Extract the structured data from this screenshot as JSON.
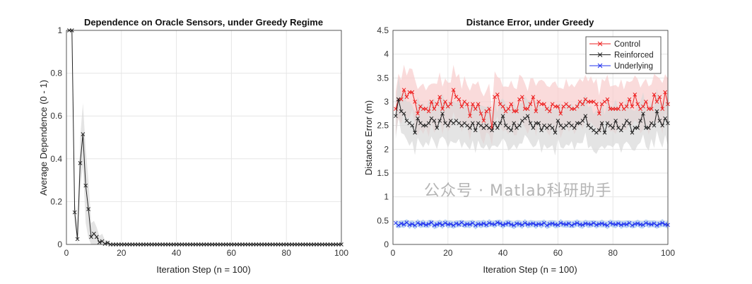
{
  "watermark": "公众号 · Matlab科研助手",
  "chart_data": [
    {
      "type": "line",
      "title": "Dependence on Oracle Sensors, under Greedy Regime",
      "xlabel": "Iteration Step (n = 100)",
      "ylabel": "Average Dependence (0 - 1)",
      "xlim": [
        0,
        100
      ],
      "ylim": [
        0,
        1
      ],
      "xticks": [
        0,
        20,
        40,
        60,
        80,
        100
      ],
      "yticks": [
        0,
        0.2,
        0.4,
        0.6,
        0.8,
        1
      ],
      "ytick_labels": [
        "0",
        "0.2",
        "0.4",
        "0.6",
        "0.8",
        "1"
      ],
      "grid": true,
      "series": [
        {
          "color": "#222222",
          "marker": "x",
          "band_color": "#d9d9d9",
          "values": [
            1,
            1,
            0.15,
            0.025,
            0.38,
            0.515,
            0.275,
            0.165,
            0.035,
            0.05,
            0.035,
            0.01,
            0.015,
            0.003,
            0.008,
            0,
            0,
            0,
            0,
            0,
            0,
            0,
            0,
            0,
            0,
            0,
            0,
            0,
            0,
            0,
            0,
            0,
            0,
            0,
            0,
            0,
            0,
            0,
            0,
            0,
            0,
            0,
            0,
            0,
            0,
            0,
            0,
            0,
            0,
            0,
            0,
            0,
            0,
            0,
            0,
            0,
            0,
            0,
            0,
            0,
            0,
            0,
            0,
            0,
            0,
            0,
            0,
            0,
            0,
            0,
            0,
            0,
            0,
            0,
            0,
            0,
            0,
            0,
            0,
            0,
            0,
            0,
            0,
            0,
            0,
            0,
            0,
            0,
            0,
            0,
            0,
            0,
            0,
            0,
            0,
            0,
            0,
            0,
            0,
            0
          ],
          "band_upper": [
            1,
            1,
            0.2,
            0.1,
            0.5,
            0.66,
            0.45,
            0.3,
            0.1,
            0.11,
            0.08,
            0.04,
            0.05,
            0.02,
            0.02,
            0,
            0,
            0,
            0,
            0,
            0,
            0,
            0,
            0,
            0,
            0,
            0,
            0,
            0,
            0,
            0,
            0,
            0,
            0,
            0,
            0,
            0,
            0,
            0,
            0,
            0,
            0,
            0,
            0,
            0,
            0,
            0,
            0,
            0,
            0,
            0,
            0,
            0,
            0,
            0,
            0,
            0,
            0,
            0,
            0,
            0,
            0,
            0,
            0,
            0,
            0,
            0,
            0,
            0,
            0,
            0,
            0,
            0,
            0,
            0,
            0,
            0,
            0,
            0,
            0,
            0,
            0,
            0,
            0,
            0,
            0,
            0,
            0,
            0,
            0,
            0,
            0,
            0,
            0,
            0,
            0,
            0,
            0,
            0,
            0
          ],
          "band_lower": [
            1,
            1,
            0.1,
            0,
            0.26,
            0.37,
            0.1,
            0.03,
            0,
            0,
            0,
            0,
            0,
            0,
            0,
            0,
            0,
            0,
            0,
            0,
            0,
            0,
            0,
            0,
            0,
            0,
            0,
            0,
            0,
            0,
            0,
            0,
            0,
            0,
            0,
            0,
            0,
            0,
            0,
            0,
            0,
            0,
            0,
            0,
            0,
            0,
            0,
            0,
            0,
            0,
            0,
            0,
            0,
            0,
            0,
            0,
            0,
            0,
            0,
            0,
            0,
            0,
            0,
            0,
            0,
            0,
            0,
            0,
            0,
            0,
            0,
            0,
            0,
            0,
            0,
            0,
            0,
            0,
            0,
            0,
            0,
            0,
            0,
            0,
            0,
            0,
            0,
            0,
            0,
            0,
            0,
            0,
            0,
            0,
            0,
            0,
            0,
            0,
            0,
            0
          ]
        }
      ]
    },
    {
      "type": "line",
      "title": "Distance Error, under Greedy",
      "xlabel": "Iteration Step (n = 100)",
      "ylabel": "Distance Error (m)",
      "xlim": [
        0,
        100
      ],
      "ylim": [
        0,
        4.5
      ],
      "xticks": [
        0,
        20,
        40,
        60,
        80,
        100
      ],
      "yticks": [
        0,
        0.5,
        1,
        1.5,
        2,
        2.5,
        3,
        3.5,
        4,
        4.5
      ],
      "ytick_labels": [
        "0",
        "0.5",
        "1",
        "1.5",
        "2",
        "2.5",
        "3",
        "3.5",
        "4",
        "4.5"
      ],
      "grid": true,
      "legend": "top-right",
      "series": [
        {
          "name": "Control",
          "color": "#ee2222",
          "band_color": "#f8cccc",
          "band_halfwidth": 0.45,
          "values": [
            2.85,
            3.05,
            3.05,
            3.25,
            3.1,
            3.2,
            3.2,
            3.0,
            2.75,
            2.9,
            2.85,
            2.85,
            2.8,
            3.0,
            2.85,
            2.95,
            3.1,
            2.85,
            3.0,
            2.9,
            2.95,
            3.25,
            3.1,
            3.05,
            2.9,
            3.0,
            2.95,
            2.7,
            2.95,
            2.85,
            2.95,
            2.75,
            2.6,
            2.8,
            2.85,
            2.45,
            3.1,
            3.15,
            2.95,
            2.9,
            2.8,
            2.85,
            2.95,
            2.8,
            2.8,
            3.05,
            3.1,
            2.85,
            2.85,
            2.95,
            3.1,
            2.8,
            3.0,
            2.95,
            2.95,
            2.85,
            2.8,
            2.95,
            2.9,
            2.9,
            2.75,
            2.9,
            2.95,
            2.9,
            2.85,
            2.85,
            2.9,
            3.0,
            2.95,
            3.05,
            3.0,
            3.0,
            3.0,
            2.95,
            2.75,
            2.95,
            3.0,
            3.05,
            2.85,
            2.85,
            2.85,
            2.85,
            2.95,
            2.85,
            2.9,
            3.05,
            2.9,
            3.15,
            2.95,
            2.85,
            2.9,
            3.0,
            2.85,
            2.85,
            3.15,
            3.0,
            3.1,
            2.85,
            3.2,
            2.95
          ]
        },
        {
          "name": "Reinforced",
          "color": "#222222",
          "band_color": "#d9d9d9",
          "band_halfwidth": 0.4,
          "values": [
            2.7,
            3.05,
            2.8,
            2.75,
            2.6,
            2.55,
            2.5,
            2.35,
            2.65,
            2.55,
            2.5,
            2.5,
            2.55,
            2.65,
            2.6,
            2.45,
            2.6,
            2.75,
            2.55,
            2.5,
            2.6,
            2.55,
            2.6,
            2.55,
            2.5,
            2.55,
            2.5,
            2.45,
            2.55,
            2.4,
            2.55,
            2.5,
            2.45,
            2.5,
            2.45,
            2.4,
            2.55,
            2.45,
            2.55,
            2.7,
            2.5,
            2.45,
            2.4,
            2.55,
            2.45,
            2.5,
            2.6,
            2.65,
            2.7,
            2.55,
            2.45,
            2.55,
            2.55,
            2.4,
            2.5,
            2.45,
            2.5,
            2.45,
            2.35,
            2.6,
            2.5,
            2.45,
            2.5,
            2.55,
            2.5,
            2.45,
            2.55,
            2.55,
            2.6,
            2.7,
            2.5,
            2.45,
            2.4,
            2.35,
            2.4,
            2.55,
            2.35,
            2.55,
            2.5,
            2.45,
            2.6,
            2.45,
            2.4,
            2.5,
            2.6,
            2.55,
            2.35,
            2.45,
            2.45,
            2.6,
            2.75,
            2.45,
            2.45,
            2.55,
            2.5,
            2.8,
            2.6,
            2.5,
            2.65,
            2.55
          ]
        },
        {
          "name": "Underlying",
          "color": "#2233ee",
          "band_color": "#9fc3f0",
          "band_halfwidth": 0.07,
          "values": [
            0.45,
            0.4,
            0.44,
            0.42,
            0.46,
            0.41,
            0.43,
            0.4,
            0.45,
            0.42,
            0.44,
            0.41,
            0.43,
            0.46,
            0.4,
            0.42,
            0.44,
            0.41,
            0.45,
            0.42,
            0.43,
            0.4,
            0.44,
            0.42,
            0.46,
            0.41,
            0.43,
            0.42,
            0.45,
            0.4,
            0.43,
            0.42,
            0.44,
            0.41,
            0.45,
            0.43,
            0.42,
            0.46,
            0.44,
            0.41,
            0.43,
            0.45,
            0.42,
            0.4,
            0.44,
            0.43,
            0.41,
            0.45,
            0.42,
            0.43,
            0.44,
            0.41,
            0.43,
            0.42,
            0.45,
            0.4,
            0.43,
            0.44,
            0.42,
            0.41,
            0.45,
            0.43,
            0.42,
            0.44,
            0.4,
            0.43,
            0.45,
            0.42,
            0.41,
            0.44,
            0.43,
            0.42,
            0.45,
            0.41,
            0.43,
            0.44,
            0.42,
            0.4,
            0.45,
            0.43,
            0.42,
            0.44,
            0.41,
            0.43,
            0.42,
            0.45,
            0.4,
            0.43,
            0.44,
            0.42,
            0.41,
            0.45,
            0.43,
            0.42,
            0.44,
            0.4,
            0.43,
            0.45,
            0.42,
            0.41
          ]
        }
      ]
    }
  ]
}
